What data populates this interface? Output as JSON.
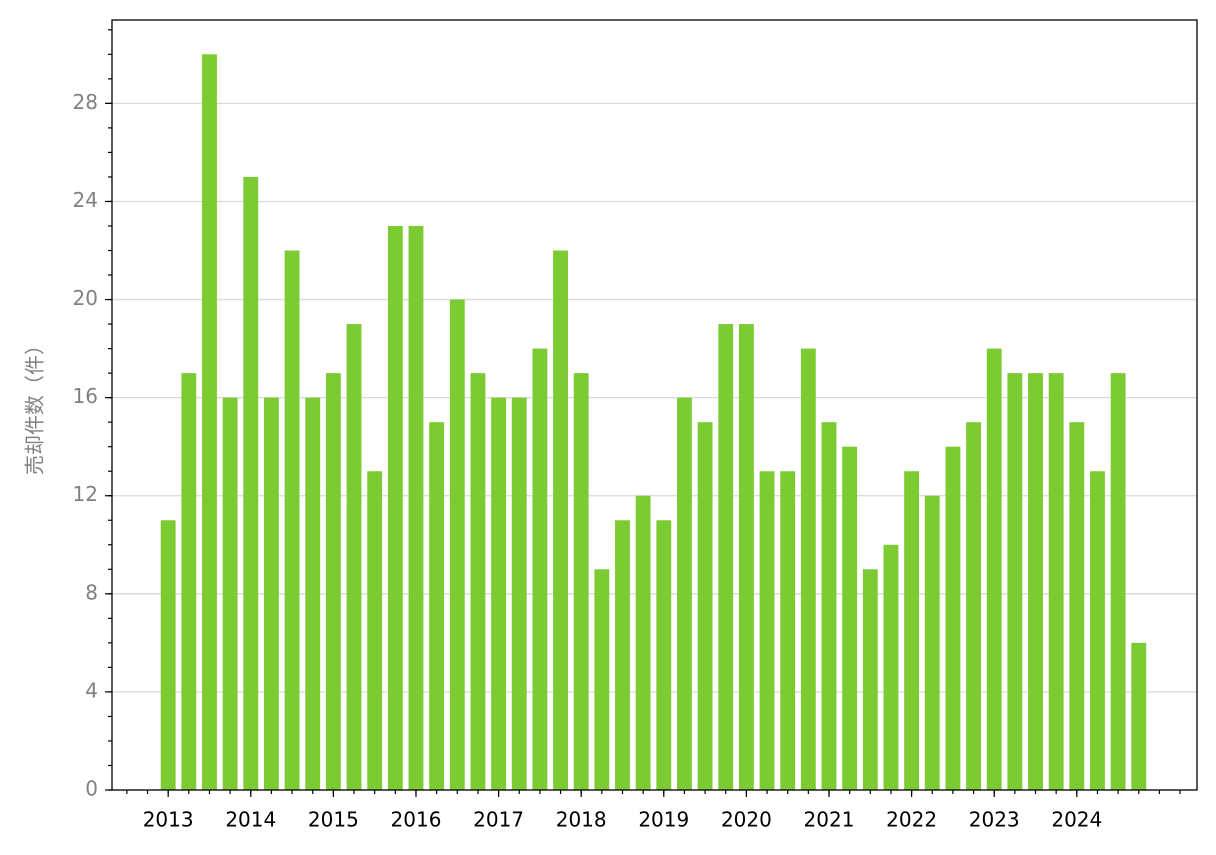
{
  "chart_data": {
    "type": "bar",
    "y_label": "売却件数（件）",
    "categories": [
      "2013",
      null,
      null,
      null,
      "2014",
      null,
      null,
      null,
      "2015",
      null,
      null,
      null,
      "2016",
      null,
      null,
      null,
      "2017",
      null,
      null,
      null,
      "2018",
      null,
      null,
      null,
      "2019",
      null,
      null,
      null,
      "2020",
      null,
      null,
      null,
      "2021",
      null,
      null,
      null,
      "2022",
      null,
      null,
      null,
      "2023",
      null,
      null,
      null,
      "2024",
      null,
      null,
      null
    ],
    "values": [
      11,
      17,
      30,
      16,
      25,
      16,
      22,
      16,
      17,
      19,
      13,
      23,
      23,
      15,
      20,
      17,
      16,
      16,
      18,
      22,
      17,
      9,
      11,
      12,
      11,
      16,
      15,
      19,
      19,
      13,
      13,
      18,
      15,
      14,
      9,
      10,
      13,
      12,
      14,
      15,
      18,
      17,
      17,
      17,
      15,
      13,
      17,
      6
    ],
    "color": "#7ccb32",
    "ylim": [
      0,
      31.4
    ],
    "yticks": [
      0,
      4,
      8,
      12,
      16,
      20,
      24,
      28
    ],
    "grid": true
  }
}
